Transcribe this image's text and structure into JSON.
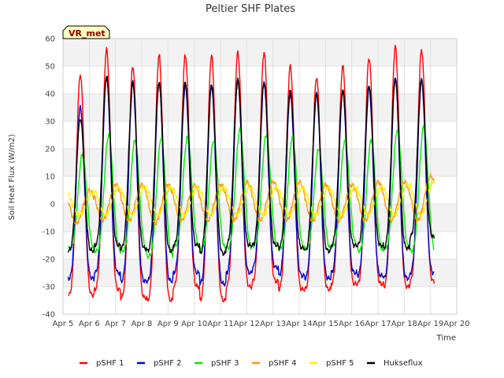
{
  "chart_data": {
    "type": "line",
    "title": "Peltier SHF Plates",
    "xlabel": "Time",
    "ylabel": "Soil Heat Flux (W/m2)",
    "badge": "VR_met",
    "ylim": [
      -40,
      60
    ],
    "yticks": [
      -40,
      -30,
      -20,
      -10,
      0,
      10,
      20,
      30,
      40,
      50,
      60
    ],
    "xlim": [
      "Apr 5",
      "Apr 20"
    ],
    "xticks": [
      "Apr 5",
      "Apr 6",
      "Apr 7",
      "Apr 8",
      "Apr 9",
      "Apr 10",
      "Apr 11",
      "Apr 12",
      "Apr 13",
      "Apr 14",
      "Apr 15",
      "Apr 16",
      "Apr 17",
      "Apr 18",
      "Apr 19",
      "Apr 20"
    ],
    "grid": true,
    "legend_position": "bottom",
    "day_labels": [
      "Apr 6",
      "Apr 7",
      "Apr 8",
      "Apr 9",
      "Apr 10",
      "Apr 11",
      "Apr 12",
      "Apr 13",
      "Apr 14",
      "Apr 15",
      "Apr 16",
      "Apr 17",
      "Apr 18",
      "Apr 19"
    ],
    "series": [
      {
        "name": "pSHF 1",
        "color": "#ff0000",
        "daily_max": [
          47,
          56,
          50,
          54,
          54,
          54,
          55,
          55,
          50,
          46,
          50,
          53,
          57,
          56
        ],
        "daily_min": [
          -33,
          -31,
          -34,
          -35,
          -30,
          -35,
          -30,
          -28,
          -31,
          -31,
          -29,
          -29,
          -30,
          -28
        ]
      },
      {
        "name": "pSHF 2",
        "color": "#0000cc",
        "daily_max": [
          35,
          46,
          44,
          44,
          43,
          43,
          45,
          44,
          40,
          40,
          41,
          42,
          46,
          45
        ],
        "daily_min": [
          -27,
          -25,
          -28,
          -28,
          -25,
          -29,
          -25,
          -23,
          -26,
          -27,
          -25,
          -26,
          -27,
          -25
        ]
      },
      {
        "name": "pSHF 3",
        "color": "#00ee00",
        "daily_max": [
          18,
          25,
          23,
          24,
          24,
          23,
          27,
          25,
          24,
          20,
          23,
          23,
          27,
          28
        ],
        "daily_min": [
          -16,
          -17,
          -17,
          -19,
          -15,
          -16,
          -16,
          -15,
          -16,
          -16,
          -15,
          -17,
          -16,
          -17
        ]
      },
      {
        "name": "pSHF 4",
        "color": "#ff9900",
        "daily_max": [
          5,
          7,
          7,
          7,
          7,
          7,
          8,
          8,
          8,
          7,
          7,
          8,
          8,
          10
        ],
        "daily_min": [
          -7,
          -6,
          -6,
          -7,
          -6,
          -6,
          -6,
          -6,
          -6,
          -6,
          -6,
          -6,
          -6,
          -6
        ]
      },
      {
        "name": "pSHF 5",
        "color": "#ffee00",
        "daily_max": [
          4,
          6,
          6,
          6,
          6,
          6,
          6,
          6,
          6,
          6,
          6,
          6,
          7,
          8
        ],
        "daily_min": [
          -4,
          -4,
          -4,
          -4,
          -4,
          -4,
          -4,
          -4,
          -4,
          -4,
          -4,
          -4,
          -4,
          -4
        ]
      },
      {
        "name": "Hukseflux",
        "color": "#000000",
        "daily_max": [
          31,
          46,
          44,
          44,
          44,
          43,
          45,
          44,
          41,
          40,
          41,
          43,
          45,
          45
        ],
        "daily_min": [
          -17,
          -15,
          -16,
          -17,
          -15,
          -18,
          -15,
          -15,
          -16,
          -17,
          -15,
          -15,
          -16,
          -12
        ]
      }
    ]
  }
}
